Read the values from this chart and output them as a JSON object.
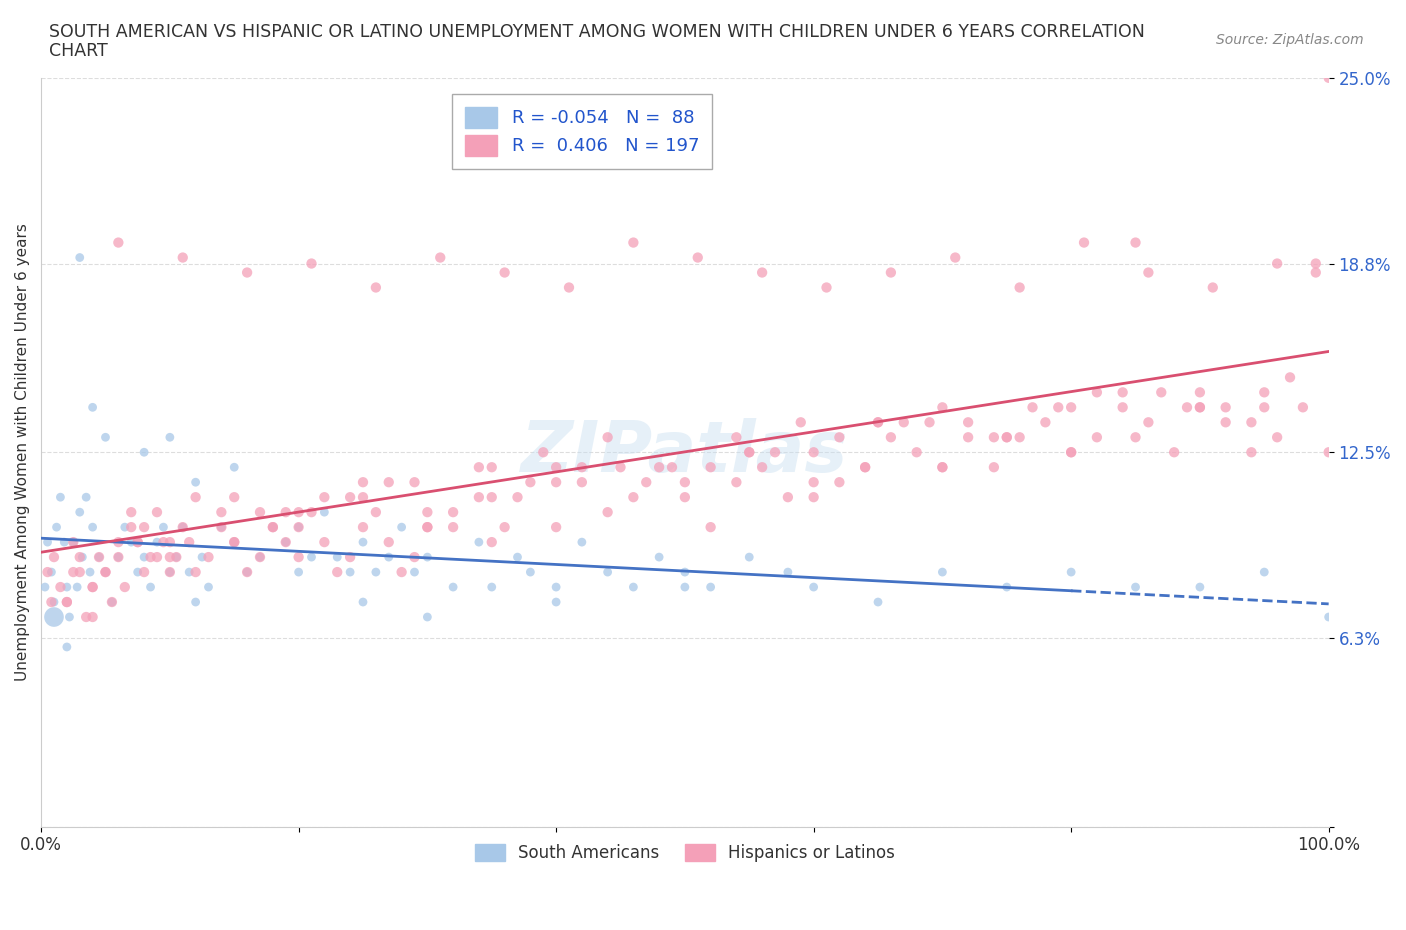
{
  "title_line1": "SOUTH AMERICAN VS HISPANIC OR LATINO UNEMPLOYMENT AMONG WOMEN WITH CHILDREN UNDER 6 YEARS CORRELATION",
  "title_line2": "CHART",
  "source": "Source: ZipAtlas.com",
  "ylabel": "Unemployment Among Women with Children Under 6 years",
  "xlim": [
    0,
    100
  ],
  "ylim": [
    0,
    25
  ],
  "yticks": [
    0,
    6.3,
    12.5,
    18.8,
    25.0
  ],
  "ytick_labels": [
    "",
    "6.3%",
    "12.5%",
    "18.8%",
    "25.0%"
  ],
  "xticks": [
    0,
    20,
    40,
    60,
    80,
    100
  ],
  "xtick_labels": [
    "0.0%",
    "",
    "",
    "",
    "",
    "100.0%"
  ],
  "blue_R": -0.054,
  "blue_N": 88,
  "pink_R": 0.406,
  "pink_N": 197,
  "blue_color": "#a8c8e8",
  "pink_color": "#f4a0b8",
  "blue_line_color": "#4472c4",
  "pink_line_color": "#d94f70",
  "legend_label_blue": "South Americans",
  "legend_label_pink": "Hispanics or Latinos",
  "blue_scatter_x": [
    0.3,
    0.5,
    0.8,
    1.0,
    1.2,
    1.5,
    1.8,
    2.0,
    2.2,
    2.5,
    2.8,
    3.0,
    3.2,
    3.5,
    3.8,
    4.0,
    4.5,
    5.0,
    5.5,
    6.0,
    6.5,
    7.0,
    7.5,
    8.0,
    8.5,
    9.0,
    9.5,
    10.0,
    10.5,
    11.0,
    11.5,
    12.0,
    12.5,
    13.0,
    14.0,
    15.0,
    16.0,
    17.0,
    18.0,
    19.0,
    20.0,
    21.0,
    22.0,
    23.0,
    24.0,
    25.0,
    26.0,
    27.0,
    28.0,
    29.0,
    30.0,
    32.0,
    34.0,
    35.0,
    37.0,
    38.0,
    40.0,
    42.0,
    44.0,
    46.0,
    48.0,
    50.0,
    52.0,
    55.0,
    58.0,
    60.0,
    65.0,
    70.0,
    75.0,
    80.0,
    85.0,
    90.0,
    95.0,
    100.0,
    1.0,
    2.0,
    3.0,
    4.0,
    5.0,
    8.0,
    10.0,
    12.0,
    15.0,
    20.0,
    25.0,
    30.0,
    40.0,
    50.0
  ],
  "blue_scatter_y": [
    8.0,
    9.5,
    8.5,
    7.5,
    10.0,
    11.0,
    9.5,
    8.0,
    7.0,
    9.5,
    8.0,
    10.5,
    9.0,
    11.0,
    8.5,
    10.0,
    9.0,
    8.5,
    7.5,
    9.0,
    10.0,
    9.5,
    8.5,
    9.0,
    8.0,
    9.5,
    10.0,
    8.5,
    9.0,
    10.0,
    8.5,
    7.5,
    9.0,
    8.0,
    10.0,
    9.5,
    8.5,
    9.0,
    10.0,
    9.5,
    8.5,
    9.0,
    10.5,
    9.0,
    8.5,
    9.5,
    8.5,
    9.0,
    10.0,
    8.5,
    9.0,
    8.0,
    9.5,
    8.0,
    9.0,
    8.5,
    8.0,
    9.5,
    8.5,
    8.0,
    9.0,
    8.5,
    8.0,
    9.0,
    8.5,
    8.0,
    7.5,
    8.5,
    8.0,
    8.5,
    8.0,
    8.0,
    8.5,
    7.0,
    7.0,
    6.0,
    19.0,
    14.0,
    13.0,
    12.5,
    13.0,
    11.5,
    12.0,
    10.0,
    7.5,
    7.0,
    7.5,
    8.0
  ],
  "blue_scatter_size": [
    40,
    40,
    40,
    40,
    40,
    40,
    40,
    40,
    40,
    40,
    40,
    40,
    40,
    40,
    40,
    40,
    40,
    40,
    40,
    40,
    40,
    40,
    40,
    40,
    40,
    40,
    40,
    40,
    40,
    40,
    40,
    40,
    40,
    40,
    40,
    40,
    40,
    40,
    40,
    40,
    40,
    40,
    40,
    40,
    40,
    40,
    40,
    40,
    40,
    40,
    40,
    40,
    40,
    40,
    40,
    40,
    40,
    40,
    40,
    40,
    40,
    40,
    40,
    40,
    40,
    40,
    40,
    40,
    40,
    40,
    40,
    40,
    40,
    40,
    200,
    40,
    40,
    40,
    40,
    40,
    40,
    40,
    40,
    40,
    40,
    40,
    40,
    40
  ],
  "pink_scatter_x": [
    0.5,
    0.8,
    1.0,
    1.5,
    2.0,
    2.5,
    3.0,
    3.5,
    4.0,
    4.5,
    5.0,
    5.5,
    6.0,
    6.5,
    7.0,
    7.5,
    8.0,
    8.5,
    9.0,
    9.5,
    10.0,
    10.5,
    11.0,
    11.5,
    12.0,
    13.0,
    14.0,
    15.0,
    16.0,
    17.0,
    18.0,
    19.0,
    20.0,
    21.0,
    22.0,
    23.0,
    24.0,
    25.0,
    26.0,
    27.0,
    28.0,
    29.0,
    30.0,
    32.0,
    34.0,
    35.0,
    36.0,
    38.0,
    40.0,
    42.0,
    44.0,
    46.0,
    48.0,
    50.0,
    52.0,
    54.0,
    56.0,
    58.0,
    60.0,
    62.0,
    64.0,
    66.0,
    68.0,
    70.0,
    72.0,
    74.0,
    76.0,
    78.0,
    80.0,
    82.0,
    84.0,
    86.0,
    88.0,
    90.0,
    92.0,
    94.0,
    96.0,
    98.0,
    100.0,
    4.0,
    6.0,
    8.0,
    10.0,
    15.0,
    20.0,
    25.0,
    30.0,
    35.0,
    40.0,
    50.0,
    55.0,
    60.0,
    65.0,
    70.0,
    75.0,
    80.0,
    85.0,
    90.0,
    95.0,
    99.0,
    2.0,
    5.0,
    10.0,
    20.0,
    40.0,
    60.0,
    80.0,
    100.0,
    3.0,
    7.0,
    12.0,
    18.0,
    30.0,
    45.0,
    70.0,
    85.0,
    95.0,
    15.0,
    25.0,
    35.0,
    55.0,
    65.0,
    75.0,
    90.0,
    2.5,
    7.5,
    17.0,
    22.0,
    27.0,
    32.0,
    37.0,
    42.0,
    47.0,
    52.0,
    57.0,
    62.0,
    67.0,
    72.0,
    77.0,
    82.0,
    87.0,
    92.0,
    97.0,
    4.0,
    9.0,
    14.0,
    19.0,
    24.0,
    29.0,
    34.0,
    39.0,
    44.0,
    49.0,
    54.0,
    59.0,
    64.0,
    69.0,
    74.0,
    79.0,
    84.0,
    89.0,
    94.0,
    99.0,
    6.0,
    11.0,
    16.0,
    21.0,
    26.0,
    31.0,
    36.0,
    41.0,
    46.0,
    51.0,
    56.0,
    61.0,
    66.0,
    71.0,
    76.0,
    81.0,
    86.0,
    91.0,
    96.0,
    100.0,
    99.0,
    97.0,
    95.0,
    93.0,
    91.0,
    89.0,
    87.0,
    85.0,
    83.0
  ],
  "pink_scatter_y": [
    8.5,
    7.5,
    9.0,
    8.0,
    7.5,
    9.5,
    8.5,
    7.0,
    8.0,
    9.0,
    8.5,
    7.5,
    9.0,
    8.0,
    10.0,
    9.5,
    8.5,
    9.0,
    10.5,
    9.5,
    8.5,
    9.0,
    10.0,
    9.5,
    8.5,
    9.0,
    10.5,
    9.5,
    8.5,
    9.0,
    10.0,
    9.5,
    9.0,
    10.5,
    9.5,
    8.5,
    9.0,
    10.0,
    10.5,
    9.5,
    8.5,
    9.0,
    10.0,
    10.5,
    11.0,
    9.5,
    10.0,
    11.5,
    10.0,
    11.5,
    10.5,
    11.0,
    12.0,
    11.5,
    10.0,
    11.5,
    12.0,
    11.0,
    12.5,
    11.5,
    12.0,
    13.0,
    12.5,
    12.0,
    13.5,
    12.0,
    13.0,
    13.5,
    12.5,
    13.0,
    14.0,
    13.5,
    12.5,
    14.0,
    13.5,
    12.5,
    13.0,
    14.0,
    12.5,
    8.0,
    9.5,
    10.0,
    9.5,
    11.0,
    10.5,
    11.5,
    10.0,
    11.0,
    12.0,
    11.0,
    12.5,
    11.5,
    13.5,
    12.0,
    13.0,
    14.0,
    13.0,
    14.5,
    14.0,
    18.5,
    7.5,
    8.5,
    9.0,
    10.0,
    11.5,
    11.0,
    12.5,
    25.0,
    9.0,
    10.5,
    11.0,
    10.0,
    10.5,
    12.0,
    14.0,
    19.5,
    14.5,
    9.5,
    11.0,
    12.0,
    12.5,
    13.5,
    13.0,
    14.0,
    8.5,
    9.5,
    10.5,
    11.0,
    11.5,
    10.0,
    11.0,
    12.0,
    11.5,
    12.0,
    12.5,
    13.0,
    13.5,
    13.0,
    14.0,
    14.5,
    14.5,
    14.0,
    15.0,
    7.0,
    9.0,
    10.0,
    10.5,
    11.0,
    11.5,
    12.0,
    12.5,
    13.0,
    12.0,
    13.0,
    13.5,
    12.0,
    13.5,
    13.0,
    14.0,
    14.5,
    14.0,
    13.5,
    18.8,
    19.5,
    19.0,
    18.5,
    18.8,
    18.0,
    19.0,
    18.5,
    18.0,
    19.5,
    19.0,
    18.5,
    18.0,
    18.5,
    19.0,
    18.0,
    19.5,
    18.5,
    18.0,
    18.8
  ]
}
